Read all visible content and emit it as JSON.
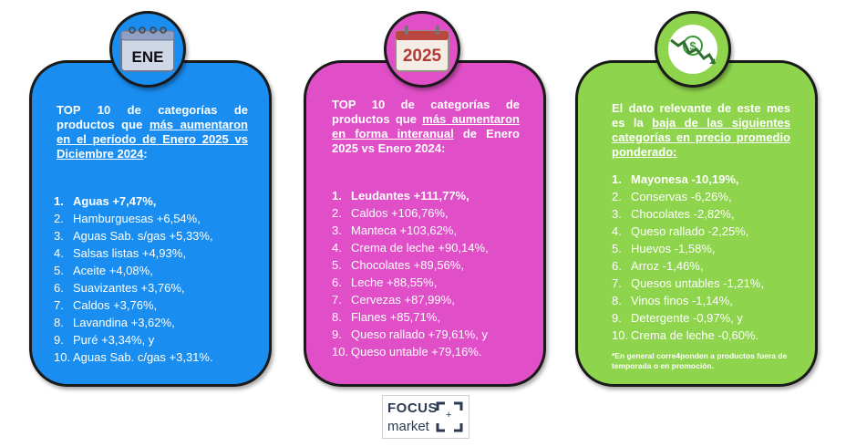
{
  "cards": [
    {
      "badge": "ENE",
      "heading_pre": "TOP 10 de categorías de productos que ",
      "heading_u": "más aumentaron en el período de Enero 2025 vs Diciembre 2024",
      "heading_post": ":",
      "items": [
        {
          "num": "1.",
          "text": "Aguas +7,47%,"
        },
        {
          "num": "2.",
          "text": "Hamburguesas +6,54%,"
        },
        {
          "num": "3.",
          "text": "Aguas Sab. s/gas +5,33%,"
        },
        {
          "num": "4.",
          "text": "Salsas listas +4,93%,"
        },
        {
          "num": "5.",
          "text": "Aceite +4,08%,"
        },
        {
          "num": "6.",
          "text": "Suavizantes +3,76%,"
        },
        {
          "num": "7.",
          "text": "Caldos +3,76%,"
        },
        {
          "num": "8.",
          "text": "Lavandina +3,62%,"
        },
        {
          "num": "9.",
          "text": "Puré +3,34%, y"
        },
        {
          "num": "10.",
          "text": "Aguas Sab. c/gas +3,31%."
        }
      ]
    },
    {
      "badge": "2025",
      "heading_pre": "TOP 10 de categorías de productos que ",
      "heading_u": "más aumentaron en forma interanual",
      "heading_post": " de Enero 2025 vs Enero 2024:",
      "items": [
        {
          "num": "1.",
          "text": "Leudantes +111,77%,"
        },
        {
          "num": "2.",
          "text": "Caldos +106,76%,"
        },
        {
          "num": "3.",
          "text": "Manteca +103,62%,"
        },
        {
          "num": "4.",
          "text": "Crema de leche +90,14%,"
        },
        {
          "num": "5.",
          "text": "Chocolates +89,56%,"
        },
        {
          "num": "6.",
          "text": "Leche +88,55%,"
        },
        {
          "num": "7.",
          "text": "Cervezas +87,99%,"
        },
        {
          "num": "8.",
          "text": "Flanes +85,71%,"
        },
        {
          "num": "9.",
          "text": "Queso rallado +79,61%, y"
        },
        {
          "num": "10.",
          "text": "Queso untable +79,16%."
        }
      ]
    },
    {
      "badge_icon": "money-down-icon",
      "heading_pre": "El dato relevante de este mes es la ",
      "heading_u": "baja de las siguientes categorías en precio promedio ponderado:",
      "heading_post": "",
      "items": [
        {
          "num": "1.",
          "text": "Mayonesa -10,19%,"
        },
        {
          "num": "2.",
          "text": "Conservas -6,26%,"
        },
        {
          "num": "3.",
          "text": "Chocolates -2,82%,"
        },
        {
          "num": "4.",
          "text": "Queso rallado -2,25%,"
        },
        {
          "num": "5.",
          "text": "Huevos -1,58%,"
        },
        {
          "num": "6.",
          "text": "Arroz -1,46%,"
        },
        {
          "num": "7.",
          "text": "Quesos untables -1,21%,"
        },
        {
          "num": "8.",
          "text": "Vinos finos  -1,14%,"
        },
        {
          "num": "9.",
          "text": "Detergente -0,97%, y"
        },
        {
          "num": "10.",
          "text": "Crema de leche -0,60%."
        }
      ],
      "note": "*En general corre4ponden a productos fuera de temporada o en promoción."
    }
  ],
  "logo": {
    "line1": "FOCUS",
    "line2": "market",
    "mark": "+"
  },
  "colors": {
    "blue": "#1a8df0",
    "pink": "#e04fc7",
    "green": "#8ed44c"
  }
}
